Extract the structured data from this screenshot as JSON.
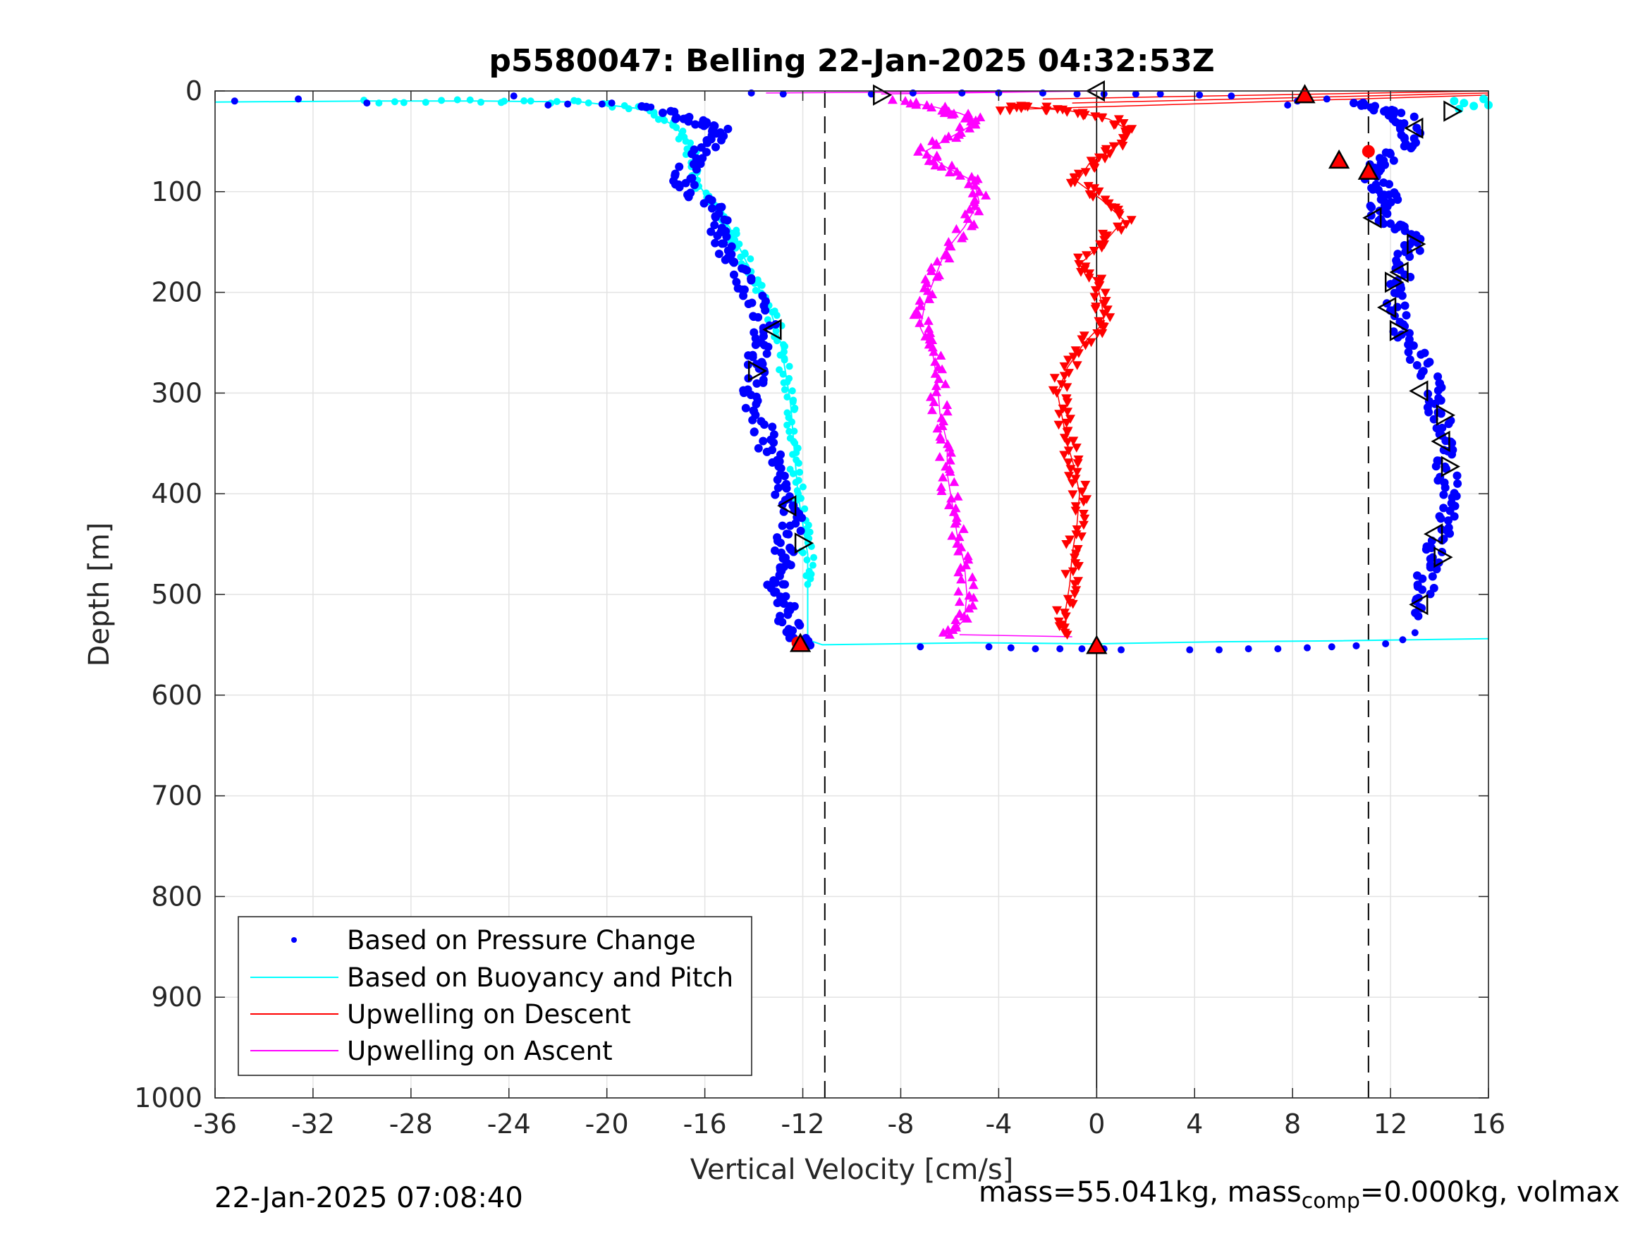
{
  "chart_data": {
    "type": "scatter",
    "title": "p5580047: Belling 22-Jan-2025 04:32:53Z",
    "xlabel": "Vertical Velocity [cm/s]",
    "ylabel": "Depth [m]",
    "xlim": [
      -36,
      16
    ],
    "ylim": [
      0,
      1000
    ],
    "y_reversed": true,
    "grid": true,
    "xticks": [
      -36,
      -32,
      -28,
      -24,
      -20,
      -16,
      -12,
      -8,
      -4,
      0,
      4,
      8,
      12,
      16
    ],
    "xtick_labels": [
      "-36",
      "-32",
      "-28",
      "-24",
      "-20",
      "-16",
      "-12",
      "-8",
      "-4",
      "0",
      "4",
      "8",
      "12",
      "16"
    ],
    "yticks": [
      0,
      100,
      200,
      300,
      400,
      500,
      600,
      700,
      800,
      900,
      1000
    ],
    "ytick_labels": [
      "0",
      "100",
      "200",
      "300",
      "400",
      "500",
      "600",
      "700",
      "800",
      "900",
      "1000"
    ],
    "reference_lines": {
      "dashed_x": [
        -11.1,
        11.1
      ],
      "solid_x": 0
    },
    "legend_position": "lower-left",
    "series": [
      {
        "name": "Based on Pressure Change",
        "style": "dots",
        "color": "#0000ff",
        "descent": [
          [
            -35.2,
            10
          ],
          [
            -32.6,
            8
          ],
          [
            -29.8,
            12
          ],
          [
            -23.8,
            5
          ],
          [
            -22.4,
            14
          ],
          [
            -21.6,
            13
          ],
          [
            -20.2,
            13
          ],
          [
            -19.8,
            12
          ],
          [
            -18.2,
            16
          ],
          [
            -16.8,
            28
          ],
          [
            -16.2,
            32
          ],
          [
            -15.4,
            40
          ],
          [
            -15.8,
            50
          ],
          [
            -16.4,
            65
          ],
          [
            -16.9,
            85
          ],
          [
            -16.8,
            95
          ],
          [
            -15.8,
            112
          ],
          [
            -15.2,
            128
          ],
          [
            -15.5,
            145
          ],
          [
            -15.2,
            160
          ],
          [
            -14.7,
            175
          ],
          [
            -14.3,
            192
          ],
          [
            -13.8,
            210
          ],
          [
            -13.5,
            230
          ],
          [
            -13.6,
            250
          ],
          [
            -13.9,
            265
          ],
          [
            -14.0,
            280
          ],
          [
            -14.1,
            300
          ],
          [
            -13.9,
            320
          ],
          [
            -13.6,
            340
          ],
          [
            -13.4,
            360
          ],
          [
            -13.1,
            380
          ],
          [
            -12.8,
            400
          ],
          [
            -12.6,
            415
          ],
          [
            -12.4,
            430
          ],
          [
            -12.7,
            450
          ],
          [
            -12.9,
            465
          ],
          [
            -13.0,
            480
          ],
          [
            -13.0,
            495
          ],
          [
            -12.8,
            510
          ],
          [
            -12.7,
            525
          ],
          [
            -12.3,
            540
          ],
          [
            -12.1,
            550
          ]
        ],
        "bottom": [
          [
            -7.2,
            552
          ],
          [
            -4.4,
            552
          ],
          [
            -3.5,
            553
          ],
          [
            -2.5,
            554
          ],
          [
            -1.5,
            554
          ],
          [
            -0.6,
            554
          ],
          [
            0.3,
            554
          ],
          [
            1.0,
            555
          ],
          [
            3.8,
            555
          ],
          [
            5.0,
            555
          ],
          [
            6.2,
            554
          ],
          [
            7.4,
            554
          ],
          [
            8.6,
            553
          ],
          [
            9.6,
            552
          ],
          [
            10.6,
            551
          ],
          [
            11.8,
            549
          ],
          [
            12.5,
            545
          ],
          [
            13.0,
            538
          ]
        ],
        "ascent": [
          [
            13.3,
            520
          ],
          [
            13.4,
            500
          ],
          [
            13.5,
            480
          ],
          [
            13.7,
            460
          ],
          [
            14.1,
            440
          ],
          [
            14.3,
            420
          ],
          [
            14.4,
            400
          ],
          [
            14.3,
            380
          ],
          [
            14.2,
            360
          ],
          [
            14.3,
            340
          ],
          [
            14.0,
            320
          ],
          [
            13.8,
            300
          ],
          [
            13.4,
            280
          ],
          [
            13.0,
            260
          ],
          [
            12.5,
            240
          ],
          [
            12.2,
            220
          ],
          [
            12.3,
            200
          ],
          [
            12.5,
            185
          ],
          [
            12.7,
            165
          ],
          [
            12.9,
            150
          ],
          [
            12.5,
            135
          ],
          [
            11.6,
            128
          ],
          [
            11.5,
            115
          ],
          [
            12.0,
            105
          ],
          [
            11.6,
            95
          ],
          [
            11.3,
            82
          ],
          [
            11.6,
            72
          ],
          [
            12.4,
            58
          ],
          [
            12.9,
            45
          ],
          [
            12.7,
            32
          ],
          [
            12.3,
            22
          ],
          [
            11.4,
            16
          ],
          [
            10.5,
            12
          ],
          [
            9.4,
            8
          ],
          [
            8.2,
            10
          ],
          [
            7.8,
            14
          ],
          [
            5.5,
            5
          ],
          [
            4.2,
            4
          ],
          [
            2.6,
            3
          ],
          [
            1.6,
            3
          ],
          [
            0.3,
            3
          ],
          [
            -0.8,
            3
          ],
          [
            -2.2,
            2
          ],
          [
            -4.0,
            2
          ],
          [
            -5.5,
            2
          ],
          [
            -7.5,
            2
          ],
          [
            -9.2,
            3
          ],
          [
            -12.8,
            3
          ],
          [
            -14.1,
            2
          ]
        ]
      },
      {
        "name": "Based on Buoyancy and Pitch",
        "style": "line-dots",
        "color": "#00ffff",
        "points": [
          [
            -36,
            11
          ],
          [
            -30,
            10
          ],
          [
            -25,
            10
          ],
          [
            -21,
            11
          ],
          [
            -18.5,
            18
          ],
          [
            -17.2,
            35
          ],
          [
            -16.6,
            55
          ],
          [
            -16.4,
            75
          ],
          [
            -16.2,
            95
          ],
          [
            -15.6,
            115
          ],
          [
            -15.0,
            135
          ],
          [
            -14.6,
            155
          ],
          [
            -14.2,
            175
          ],
          [
            -13.8,
            195
          ],
          [
            -13.3,
            220
          ],
          [
            -12.9,
            250
          ],
          [
            -12.7,
            280
          ],
          [
            -12.5,
            310
          ],
          [
            -12.4,
            340
          ],
          [
            -12.3,
            370
          ],
          [
            -12.2,
            400
          ],
          [
            -12.0,
            430
          ],
          [
            -11.8,
            460
          ],
          [
            -11.8,
            490
          ],
          [
            -11.8,
            520
          ],
          [
            -11.8,
            545
          ],
          [
            -11.2,
            550
          ],
          [
            -5,
            548
          ],
          [
            0,
            549
          ],
          [
            5,
            547
          ],
          [
            10,
            546
          ],
          [
            16,
            544
          ]
        ],
        "top_ascent": [
          [
            14.6,
            10
          ],
          [
            15.0,
            12
          ],
          [
            15.4,
            15
          ],
          [
            15.8,
            8
          ],
          [
            16.0,
            14
          ],
          [
            14.8,
            18
          ]
        ]
      },
      {
        "name": "Upwelling on Descent",
        "style": "line-triangles",
        "color": "#ff0000",
        "points": [
          [
            -3.6,
            18
          ],
          [
            -2.8,
            16
          ],
          [
            -1.0,
            20
          ],
          [
            0.5,
            28
          ],
          [
            1.4,
            40
          ],
          [
            0.8,
            55
          ],
          [
            -0.3,
            72
          ],
          [
            -0.8,
            90
          ],
          [
            0.2,
            108
          ],
          [
            1.1,
            128
          ],
          [
            0.4,
            148
          ],
          [
            -0.6,
            170
          ],
          [
            0.0,
            190
          ],
          [
            0.2,
            210
          ],
          [
            0.3,
            230
          ],
          [
            -0.5,
            250
          ],
          [
            -1.2,
            275
          ],
          [
            -1.6,
            300
          ],
          [
            -1.4,
            325
          ],
          [
            -1.2,
            350
          ],
          [
            -0.9,
            375
          ],
          [
            -0.7,
            400
          ],
          [
            -0.8,
            430
          ],
          [
            -1.0,
            460
          ],
          [
            -1.1,
            490
          ],
          [
            -1.3,
            520
          ],
          [
            -1.2,
            540
          ]
        ],
        "spike_lines": [
          [
            [
              -1.0,
              12
            ],
            [
              16,
              2
            ]
          ],
          [
            [
              -3.0,
              18
            ],
            [
              16,
              4
            ]
          ],
          [
            [
              -2.2,
              8
            ],
            [
              16,
              0
            ]
          ]
        ]
      },
      {
        "name": "Upwelling on Ascent",
        "style": "line-triangles",
        "color": "#ff00ff",
        "points": [
          [
            -8.0,
            10
          ],
          [
            -6.6,
            16
          ],
          [
            -5.6,
            22
          ],
          [
            -4.8,
            30
          ],
          [
            -5.9,
            45
          ],
          [
            -7.0,
            60
          ],
          [
            -6.2,
            75
          ],
          [
            -5.0,
            90
          ],
          [
            -4.8,
            110
          ],
          [
            -5.4,
            135
          ],
          [
            -6.2,
            160
          ],
          [
            -6.6,
            185
          ],
          [
            -7.0,
            210
          ],
          [
            -7.2,
            235
          ],
          [
            -6.7,
            260
          ],
          [
            -6.5,
            290
          ],
          [
            -6.4,
            320
          ],
          [
            -6.1,
            350
          ],
          [
            -6.1,
            380
          ],
          [
            -5.9,
            410
          ],
          [
            -5.7,
            440
          ],
          [
            -5.4,
            470
          ],
          [
            -5.3,
            500
          ],
          [
            -5.4,
            525
          ],
          [
            -6.0,
            540
          ]
        ],
        "spike_lines": [
          [
            [
              -13.5,
              2
            ],
            [
              0,
              0
            ]
          ],
          [
            [
              -8.8,
              3
            ],
            [
              0,
              0
            ]
          ],
          [
            [
              -5.6,
              540
            ],
            [
              -1.0,
              542
            ]
          ]
        ]
      }
    ],
    "markers": {
      "open_triangles": [
        [
          -8.8,
          4,
          "right"
        ],
        [
          0.0,
          0,
          "left"
        ],
        [
          14.5,
          20,
          "right"
        ],
        [
          13.0,
          37,
          "left"
        ],
        [
          11.3,
          126,
          "left"
        ],
        [
          13.0,
          152,
          "right"
        ],
        [
          12.4,
          180,
          "left"
        ],
        [
          12.1,
          190,
          "right"
        ],
        [
          11.9,
          215,
          "left"
        ],
        [
          12.3,
          238,
          "right"
        ],
        [
          13.2,
          298,
          "left"
        ],
        [
          14.2,
          322,
          "right"
        ],
        [
          14.1,
          348,
          "left"
        ],
        [
          14.4,
          373,
          "right"
        ],
        [
          13.8,
          440,
          "left"
        ],
        [
          14.1,
          463,
          "right"
        ],
        [
          13.2,
          510,
          "left"
        ],
        [
          -13.2,
          237,
          "left"
        ],
        [
          -13.9,
          278,
          "right"
        ],
        [
          -12.6,
          412,
          "left"
        ],
        [
          -12.0,
          449,
          "right"
        ]
      ],
      "red_up_triangles": [
        [
          8.5,
          4
        ],
        [
          9.9,
          69
        ],
        [
          11.1,
          80
        ],
        [
          -12.1,
          549
        ],
        [
          0.0,
          551
        ]
      ],
      "red_dots": [
        [
          11.1,
          60
        ],
        [
          -12.2,
          548
        ]
      ]
    }
  },
  "footer": {
    "left_text": "22-Jan-2025 07:08:40",
    "right_text": "mass=55.041kg, mass",
    "right_sub": "comp",
    "right_text_2": "=0.000kg, volmax"
  },
  "colors": {
    "pressure": "#0000ff",
    "buoyancy": "#00ffff",
    "descent": "#ff0000",
    "ascent": "#ff00ff"
  }
}
